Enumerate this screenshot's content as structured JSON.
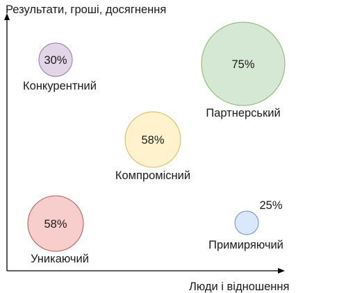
{
  "axes": {
    "y_label": "Результати, гроші, досягнення",
    "x_label": "Люди і відношення"
  },
  "styles": [
    {
      "id": "competitive",
      "name": "Конкурентний",
      "percent": "30%",
      "fill": "#e1d5e7",
      "stroke": "#9673a6"
    },
    {
      "id": "partner",
      "name": "Партнерський",
      "percent": "75%",
      "fill": "#d5e8d4",
      "stroke": "#82b366"
    },
    {
      "id": "compromise",
      "name": "Компромісний",
      "percent": "58%",
      "fill": "#fff2cc",
      "stroke": "#d6b656"
    },
    {
      "id": "avoiding",
      "name": "Уникаючий",
      "percent": "58%",
      "fill": "#f8cecc",
      "stroke": "#b85450"
    },
    {
      "id": "accommodating",
      "name": "Примиряючий",
      "percent": "25%",
      "fill": "#dae8fc",
      "stroke": "#6c8ebf"
    }
  ],
  "colors": {
    "axis": "#000000",
    "text": "#1a1a1a"
  }
}
